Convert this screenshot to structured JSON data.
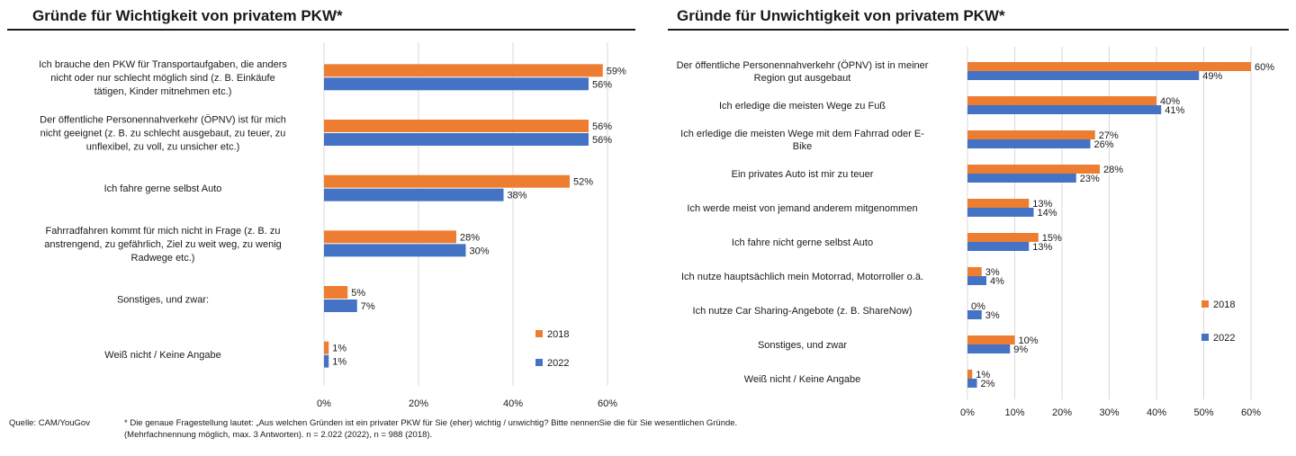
{
  "colors": {
    "s2018": "#ed7d31",
    "s2022": "#4472c4"
  },
  "chart_data": [
    {
      "type": "bar",
      "orientation": "horizontal",
      "title": "Gründe für Wichtigkeit von privatem PKW*",
      "categories": [
        [
          "Ich brauche den PKW für Transportaufgaben, die anders",
          "nicht oder nur schlecht möglich sind (z. B. Einkäufe",
          "tätigen, Kinder mitnehmen etc.)"
        ],
        [
          "Der öffentliche Personennahverkehr (ÖPNV) ist für mich",
          "nicht geeignet (z. B. zu schlecht ausgebaut, zu teuer, zu",
          "unflexibel, zu voll, zu unsicher etc.)"
        ],
        [
          "Ich fahre gerne selbst Auto"
        ],
        [
          "Fahrradfahren kommt für mich nicht in Frage (z. B. zu",
          "anstrengend, zu gefährlich, Ziel zu weit weg, zu wenig",
          "Radwege etc.)"
        ],
        [
          "Sonstiges, und zwar:"
        ],
        [
          "Weiß nicht / Keine Angabe"
        ]
      ],
      "series": [
        {
          "name": "2018",
          "values": [
            59,
            56,
            52,
            28,
            5,
            1
          ]
        },
        {
          "name": "2022",
          "values": [
            56,
            56,
            38,
            30,
            7,
            1
          ]
        }
      ],
      "value_labels": [
        [
          "59%",
          "56%",
          "52%",
          "28%",
          "5%",
          "1%"
        ],
        [
          "56%",
          "56%",
          "38%",
          "30%",
          "7%",
          "1%"
        ]
      ],
      "xticks": [
        "0%",
        "20%",
        "40%",
        "60%"
      ],
      "xlim": [
        0,
        60
      ],
      "legend": "right"
    },
    {
      "type": "bar",
      "orientation": "horizontal",
      "title": "Gründe für Unwichtigkeit von privatem PKW*",
      "categories": [
        [
          "Der öffentliche Personennahverkehr (ÖPNV) ist in meiner",
          "Region gut ausgebaut"
        ],
        [
          "Ich erledige die meisten Wege zu Fuß"
        ],
        [
          "Ich erledige die meisten Wege mit dem Fahrrad oder E-",
          "Bike"
        ],
        [
          "Ein privates Auto ist mir zu teuer"
        ],
        [
          "Ich werde meist von jemand anderem mitgenommen"
        ],
        [
          "Ich fahre nicht gerne selbst Auto"
        ],
        [
          "Ich nutze hauptsächlich mein Motorrad, Motorroller o.ä."
        ],
        [
          "Ich nutze Car Sharing-Angebote (z. B. ShareNow)"
        ],
        [
          "Sonstiges, und zwar"
        ],
        [
          "Weiß nicht / Keine Angabe"
        ]
      ],
      "series": [
        {
          "name": "2018",
          "values": [
            60,
            40,
            27,
            28,
            13,
            15,
            3,
            0,
            10,
            1
          ]
        },
        {
          "name": "2022",
          "values": [
            49,
            41,
            26,
            23,
            14,
            13,
            4,
            3,
            9,
            2
          ]
        }
      ],
      "value_labels": [
        [
          "60%",
          "40%",
          "27%",
          "28%",
          "13%",
          "15%",
          "3%",
          "0%",
          "10%",
          "1%"
        ],
        [
          "49%",
          "41%",
          "26%",
          "23%",
          "14%",
          "13%",
          "4%",
          "3%",
          "9%",
          "2%"
        ]
      ],
      "xticks": [
        "0%",
        "10%",
        "20%",
        "30%",
        "40%",
        "50%",
        "60%"
      ],
      "xlim": [
        0,
        60
      ],
      "legend": "right"
    }
  ],
  "footer": {
    "source": "Quelle: CAM/YouGov",
    "note": "* Die genaue Fragestellung lautet: „Aus welchen Gründen ist ein privater PKW für Sie (eher) wichtig / unwichtig? Bitte nennenSie die für Sie wesentlichen Gründe. (Mehrfachnennung möglich, max. 3 Antworten). n = 2.022 (2022), n = 988 (2018)."
  }
}
